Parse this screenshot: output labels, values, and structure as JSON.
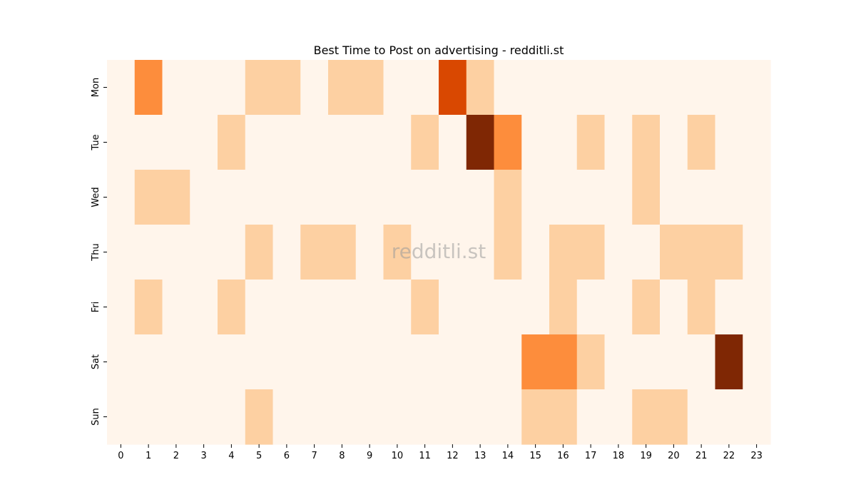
{
  "chart_data": {
    "type": "heatmap",
    "title": "Best Time to Post on advertising - redditli.st",
    "watermark": "redditli.st",
    "x_categories": [
      "0",
      "1",
      "2",
      "3",
      "4",
      "5",
      "6",
      "7",
      "8",
      "9",
      "10",
      "11",
      "12",
      "13",
      "14",
      "15",
      "16",
      "17",
      "18",
      "19",
      "20",
      "21",
      "22",
      "23"
    ],
    "y_categories": [
      "Mon",
      "Tue",
      "Wed",
      "Thu",
      "Fri",
      "Sat",
      "Sun"
    ],
    "values": [
      [
        0,
        2,
        0,
        0,
        0,
        1,
        1,
        0,
        1,
        1,
        0,
        0,
        3,
        1,
        0,
        0,
        0,
        0,
        0,
        0,
        0,
        0,
        0,
        0
      ],
      [
        0,
        0,
        0,
        0,
        1,
        0,
        0,
        0,
        0,
        0,
        0,
        1,
        0,
        4,
        2,
        0,
        0,
        1,
        0,
        1,
        0,
        1,
        0,
        0
      ],
      [
        0,
        1,
        1,
        0,
        0,
        0,
        0,
        0,
        0,
        0,
        0,
        0,
        0,
        0,
        1,
        0,
        0,
        0,
        0,
        1,
        0,
        0,
        0,
        0
      ],
      [
        0,
        0,
        0,
        0,
        0,
        1,
        0,
        1,
        1,
        0,
        1,
        0,
        0,
        0,
        1,
        0,
        1,
        1,
        0,
        0,
        1,
        1,
        1,
        0
      ],
      [
        0,
        1,
        0,
        0,
        1,
        0,
        0,
        0,
        0,
        0,
        0,
        1,
        0,
        0,
        0,
        0,
        1,
        0,
        0,
        1,
        0,
        1,
        0,
        0
      ],
      [
        0,
        0,
        0,
        0,
        0,
        0,
        0,
        0,
        0,
        0,
        0,
        0,
        0,
        0,
        0,
        2,
        2,
        1,
        0,
        0,
        0,
        0,
        4,
        0
      ],
      [
        0,
        0,
        0,
        0,
        0,
        1,
        0,
        0,
        0,
        0,
        0,
        0,
        0,
        0,
        0,
        1,
        1,
        0,
        0,
        1,
        1,
        0,
        0,
        0
      ]
    ],
    "colormap": [
      "#fff5eb",
      "#fdd0a2",
      "#fd8d3c",
      "#d94801",
      "#7f2704"
    ],
    "grid": false,
    "legend": "none"
  }
}
